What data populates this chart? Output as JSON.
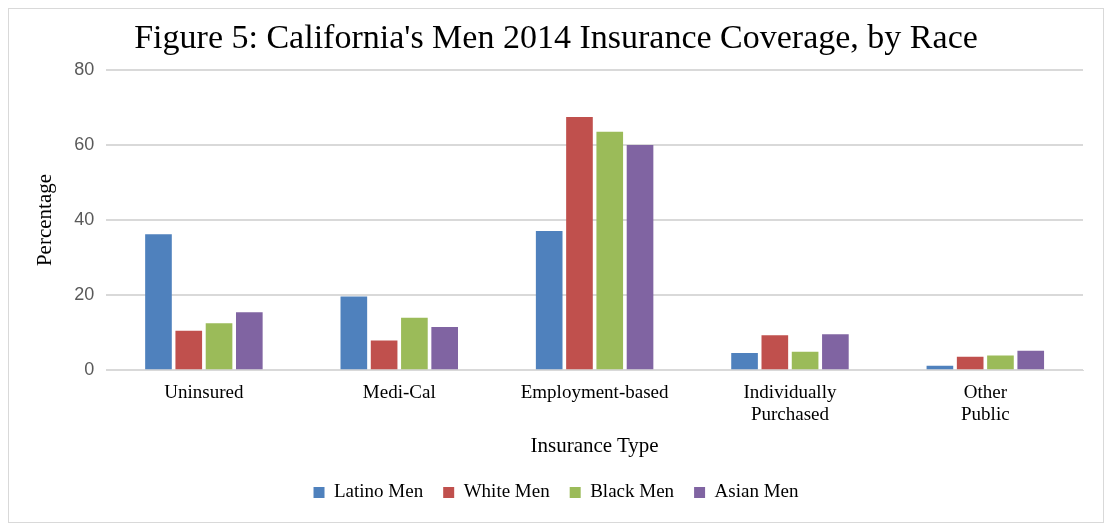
{
  "chart_data": {
    "type": "bar",
    "title": "Figure 5: California's Men 2014 Insurance Coverage, by Race",
    "xlabel": "Insurance Type",
    "ylabel": "Percentage",
    "categories": [
      "Uninsured",
      "Medi-Cal",
      "Employment-based",
      "Individually Purchased",
      "Other Public"
    ],
    "series": [
      {
        "name": "Latino Men",
        "color": "#4f81bd",
        "values": [
          36.2,
          19.6,
          37.1,
          4.6,
          1.2
        ]
      },
      {
        "name": "White Men",
        "color": "#c0504d",
        "values": [
          10.5,
          7.9,
          67.4,
          9.3,
          3.6
        ]
      },
      {
        "name": "Black Men",
        "color": "#9bbb59",
        "values": [
          12.5,
          14.0,
          63.5,
          4.9,
          3.9
        ]
      },
      {
        "name": "Asian Men",
        "color": "#8064a2",
        "values": [
          15.4,
          11.5,
          60.0,
          9.6,
          5.2
        ]
      }
    ],
    "ylim": [
      0,
      80
    ],
    "yticks": [
      0,
      20,
      40,
      60,
      80
    ],
    "grid": "y",
    "legend": "bottom"
  }
}
